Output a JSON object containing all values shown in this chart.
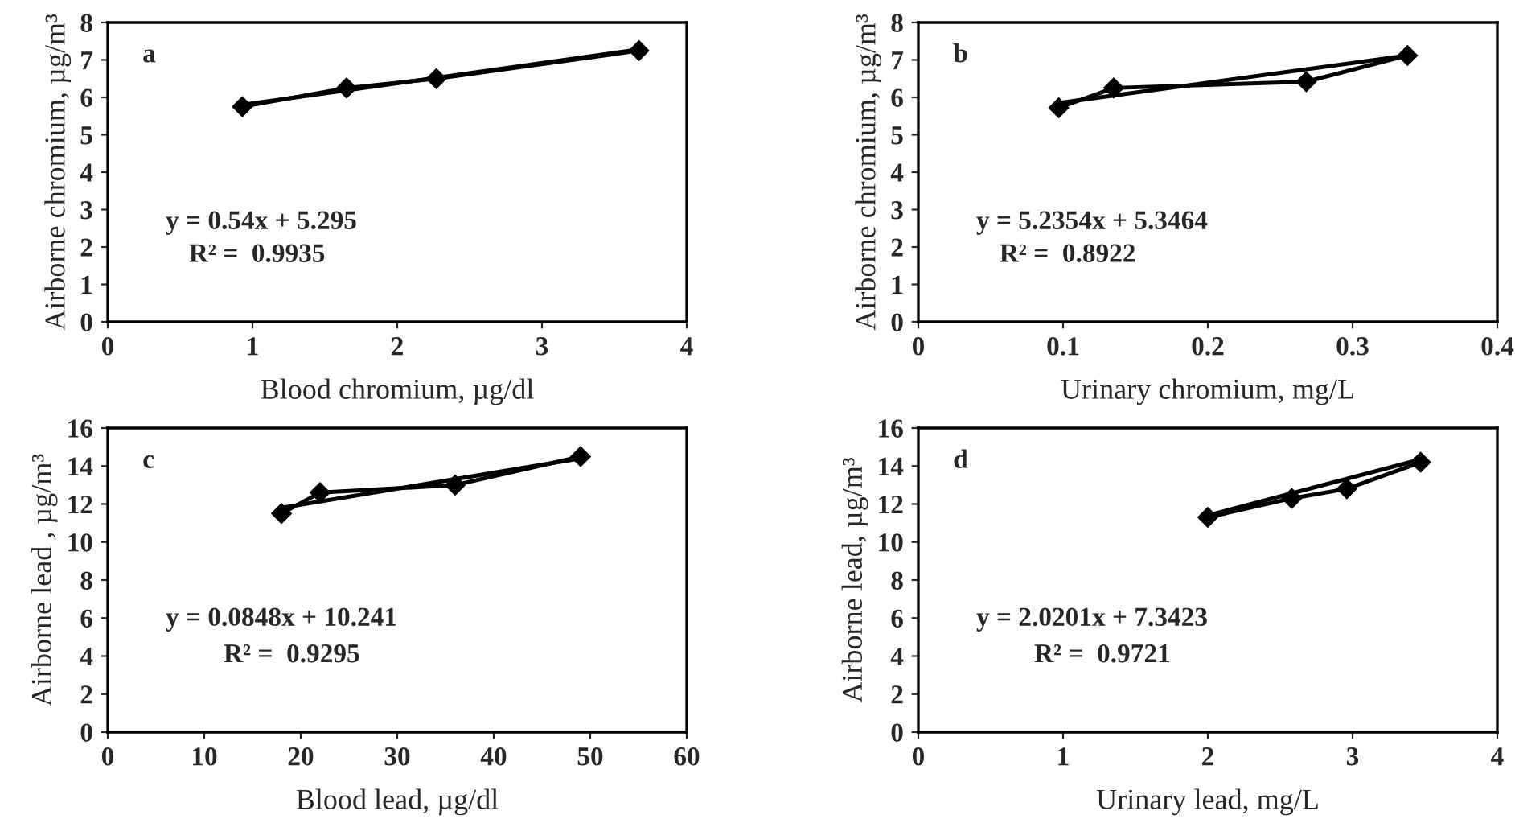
{
  "chart_data": [
    {
      "type": "line",
      "title": "a",
      "xlabel": "Blood chromium, µg/dl",
      "ylabel": "Airborne chromium, µg/m³",
      "xlim": [
        0,
        4
      ],
      "xticks": [
        0,
        1,
        2,
        3,
        4
      ],
      "ylim": [
        0,
        8
      ],
      "yticks": [
        0,
        1,
        2,
        3,
        4,
        5,
        6,
        7,
        8
      ],
      "grid": false,
      "legend": false,
      "series": [
        {
          "color": "#000000",
          "marker": "diamond",
          "line_style": "solid",
          "x": [
            0.93,
            1.65,
            2.27,
            3.67
          ],
          "values": [
            5.75,
            6.25,
            6.5,
            7.25
          ]
        },
        {
          "color": "#000000",
          "marker": "none",
          "line_style": "solid",
          "x": [
            0.93,
            3.67
          ],
          "values": [
            5.8,
            7.28
          ]
        }
      ],
      "annotations": [
        "y = 0.54x + 5.295",
        "R² =  0.9935"
      ]
    },
    {
      "type": "line",
      "title": "b",
      "xlabel": "Urinary chromium, mg/L",
      "ylabel": "Airborne chromium, µg/m³",
      "xlim": [
        0,
        0.4
      ],
      "xticks": [
        0,
        0.1,
        0.2,
        0.3,
        0.4
      ],
      "ylim": [
        0,
        8
      ],
      "yticks": [
        0,
        1,
        2,
        3,
        4,
        5,
        6,
        7,
        8
      ],
      "grid": false,
      "legend": false,
      "series": [
        {
          "color": "#000000",
          "marker": "diamond",
          "line_style": "solid",
          "x": [
            0.097,
            0.135,
            0.268,
            0.338
          ],
          "values": [
            5.72,
            6.25,
            6.42,
            7.12
          ]
        },
        {
          "color": "#000000",
          "marker": "none",
          "line_style": "solid",
          "x": [
            0.097,
            0.338
          ],
          "values": [
            5.85,
            7.12
          ]
        }
      ],
      "annotations": [
        "y = 5.2354x + 5.3464",
        "R² =  0.8922"
      ]
    },
    {
      "type": "line",
      "title": "c",
      "xlabel": "Blood lead, µg/dl",
      "ylabel": "Airborne lead , µg/m³",
      "xlim": [
        0,
        60
      ],
      "xticks": [
        0,
        10,
        20,
        30,
        40,
        50,
        60
      ],
      "ylim": [
        0,
        16
      ],
      "yticks": [
        0,
        2,
        4,
        6,
        8,
        10,
        12,
        14,
        16
      ],
      "grid": false,
      "legend": false,
      "series": [
        {
          "color": "#000000",
          "marker": "diamond",
          "line_style": "solid",
          "x": [
            18,
            22,
            36,
            49
          ],
          "values": [
            11.5,
            12.6,
            13.0,
            14.5
          ]
        },
        {
          "color": "#000000",
          "marker": "none",
          "line_style": "solid",
          "x": [
            18,
            49
          ],
          "values": [
            11.8,
            14.4
          ]
        }
      ],
      "annotations": [
        "y = 0.0848x + 10.241",
        "R² =  0.9295"
      ]
    },
    {
      "type": "line",
      "title": "d",
      "xlabel": "Urinary lead, mg/L",
      "ylabel": "Airborne lead, µg/m³",
      "xlim": [
        0,
        4
      ],
      "xticks": [
        0,
        1,
        2,
        3,
        4
      ],
      "ylim": [
        0,
        16
      ],
      "yticks": [
        0,
        2,
        4,
        6,
        8,
        10,
        12,
        14,
        16
      ],
      "grid": false,
      "legend": false,
      "series": [
        {
          "color": "#000000",
          "marker": "diamond",
          "line_style": "solid",
          "x": [
            2.0,
            2.58,
            2.96,
            3.47
          ],
          "values": [
            11.3,
            12.3,
            12.8,
            14.2
          ]
        },
        {
          "color": "#000000",
          "marker": "none",
          "line_style": "solid",
          "x": [
            2.0,
            3.47
          ],
          "values": [
            11.4,
            14.35
          ]
        }
      ],
      "annotations": [
        "y = 2.0201x + 7.3423",
        "R² =  0.9721"
      ]
    }
  ]
}
